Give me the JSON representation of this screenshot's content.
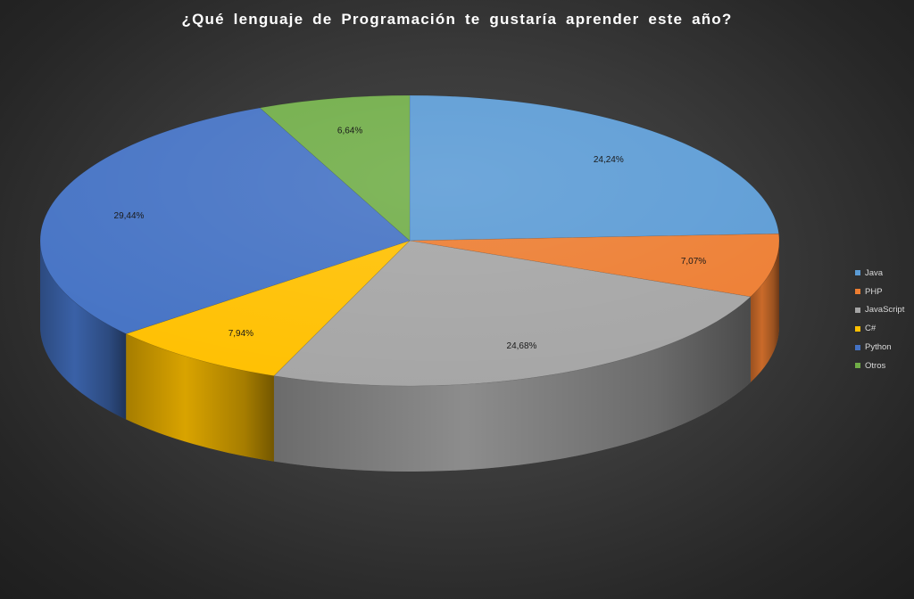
{
  "chart_data": {
    "type": "pie",
    "title": "¿Qué lenguaje de Programación te gustaría aprender este año?",
    "categories": [
      "Java",
      "PHP",
      "JavaScript",
      "C#",
      "Python",
      "Otros"
    ],
    "values": [
      24.24,
      7.07,
      24.68,
      7.94,
      29.44,
      6.64
    ],
    "data_labels": [
      "24,24%",
      "7,07%",
      "24,68%",
      "7,94%",
      "29,44%",
      "6,64%"
    ],
    "colors": [
      "#5b9bd5",
      "#ed7d31",
      "#a5a5a5",
      "#ffc000",
      "#4472c4",
      "#70ad47"
    ],
    "legend_position": "right",
    "style": "3d-pie"
  }
}
